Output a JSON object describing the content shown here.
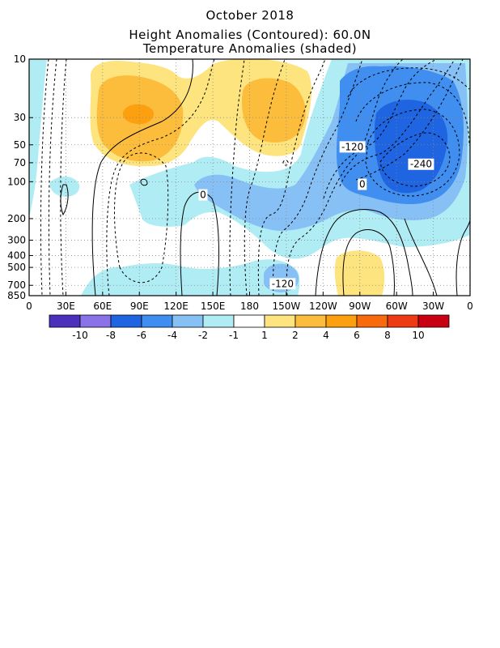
{
  "chart_data": {
    "type": "heatmap",
    "title": "October 2018",
    "subtitle_1": "Height Anomalies (Contoured): 60.0N",
    "subtitle_2": "Temperature Anomalies (shaded)",
    "x_tick_labels": [
      "0",
      "30E",
      "60E",
      "90E",
      "120E",
      "150E",
      "180",
      "150W",
      "120W",
      "90W",
      "60W",
      "30W",
      "0"
    ],
    "x_ticks_deg_east": [
      0,
      30,
      60,
      90,
      120,
      150,
      180,
      210,
      240,
      270,
      300,
      330,
      360
    ],
    "y_tick_labels": [
      "10",
      "30",
      "50",
      "70",
      "100",
      "200",
      "300",
      "400",
      "500",
      "700",
      "850"
    ],
    "y_ticks_hpa": [
      10,
      30,
      50,
      70,
      100,
      200,
      300,
      400,
      500,
      700,
      850
    ],
    "y_scale": "log",
    "ylim_hpa": [
      850,
      10
    ],
    "xlim_deg_east": [
      0,
      360
    ],
    "grid": true,
    "contour_labels": [
      {
        "text": "-120",
        "lon": 264,
        "p": 52
      },
      {
        "text": "-240",
        "lon": 320,
        "p": 72
      },
      {
        "text": "0",
        "lon": 272,
        "p": 105
      },
      {
        "text": "0",
        "lon": 142,
        "p": 128
      },
      {
        "text": "-120",
        "lon": 207,
        "p": 680
      }
    ],
    "temperature_anomaly_features": [
      {
        "sign": "warm",
        "value": 2,
        "lon": [
          55,
          125
        ],
        "p": [
          10,
          70
        ]
      },
      {
        "sign": "warm",
        "value": 4,
        "lon": [
          60,
          115
        ],
        "p": [
          15,
          50
        ]
      },
      {
        "sign": "warm",
        "value": 6,
        "lon": [
          80,
          100
        ],
        "p": [
          28,
          36
        ]
      },
      {
        "sign": "warm",
        "value": 2,
        "lon": [
          150,
          225
        ],
        "p": [
          10,
          70
        ]
      },
      {
        "sign": "warm",
        "value": 4,
        "lon": [
          170,
          210
        ],
        "p": [
          20,
          55
        ]
      },
      {
        "sign": "warm",
        "value": 2,
        "lon": [
          250,
          285
        ],
        "p": [
          400,
          850
        ]
      },
      {
        "sign": "cold",
        "value": -2,
        "lon": [
          240,
          360
        ],
        "p": [
          10,
          400
        ]
      },
      {
        "sign": "cold",
        "value": -4,
        "lon": [
          250,
          355
        ],
        "p": [
          10,
          250
        ]
      },
      {
        "sign": "cold",
        "value": -6,
        "lon": [
          280,
          345
        ],
        "p": [
          25,
          130
        ]
      },
      {
        "sign": "cold",
        "value": -2,
        "lon": [
          90,
          250
        ],
        "p": [
          60,
          300
        ]
      },
      {
        "sign": "cold",
        "value": -4,
        "lon": [
          150,
          240
        ],
        "p": [
          80,
          250
        ]
      },
      {
        "sign": "cold",
        "value": -2,
        "lon": [
          0,
          10
        ],
        "p": [
          10,
          200
        ]
      },
      {
        "sign": "cold",
        "value": -2,
        "lon": [
          55,
          190
        ],
        "p": [
          400,
          850
        ]
      },
      {
        "sign": "cold",
        "value": -4,
        "lon": [
          190,
          220
        ],
        "p": [
          550,
          800
        ]
      }
    ]
  },
  "colorbar": {
    "labels": [
      "-10",
      "-8",
      "-6",
      "-4",
      "-2",
      "-1",
      "1",
      "2",
      "4",
      "6",
      "8",
      "10"
    ],
    "colors": [
      "#4b2fbd",
      "#8a73e8",
      "#1f64e0",
      "#3f8ef0",
      "#86c0f5",
      "#b0ecf4",
      "#ffffff",
      "#fee47e",
      "#fdbd3c",
      "#fda00f",
      "#f96a0d",
      "#ee3b13",
      "#c90012"
    ]
  },
  "colors": {
    "warm1": "#fee47e",
    "warm2": "#fdbd3c",
    "warm3": "#fda00f",
    "cold1": "#b0ecf4",
    "cold2": "#86c0f5",
    "cold3": "#3f8ef0",
    "cold4": "#1f64e0"
  }
}
